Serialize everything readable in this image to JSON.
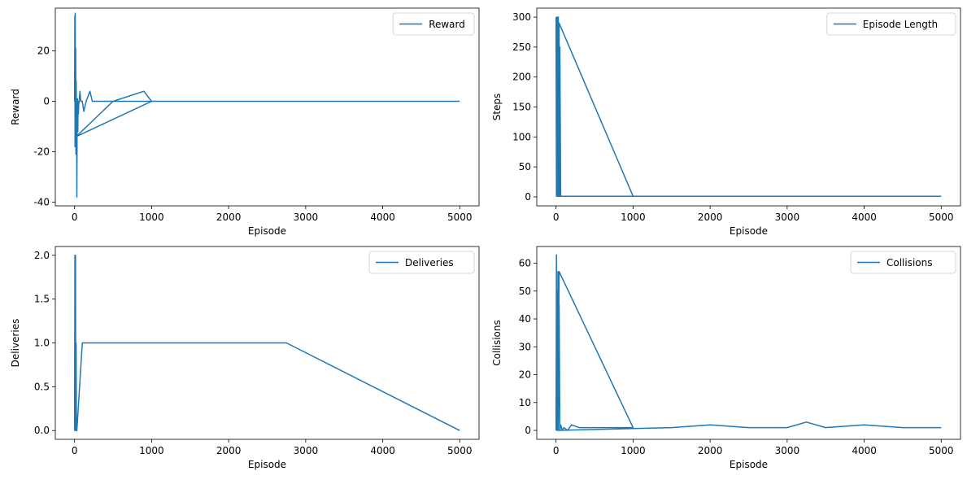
{
  "chart_data": [
    {
      "type": "line",
      "title": "",
      "xlabel": "Episode",
      "ylabel": "Reward",
      "xlim": [
        -250,
        5250
      ],
      "ylim": [
        -41.5,
        37
      ],
      "xticks": [
        0,
        1000,
        2000,
        3000,
        4000,
        5000
      ],
      "yticks": [
        -40,
        -20,
        0,
        20
      ],
      "legend": "upper right",
      "color": "#1f77b4",
      "series": [
        {
          "name": "Reward",
          "x": [
            0,
            3,
            6,
            9,
            12,
            15,
            18,
            21,
            24,
            27,
            30,
            34,
            38,
            42,
            46,
            50,
            55,
            60,
            70,
            80,
            100,
            120,
            150,
            200,
            230,
            1000,
            20,
            500,
            900,
            1000,
            1100,
            1500,
            2000,
            2500,
            3000,
            3500,
            4000,
            4500,
            5000
          ],
          "y": [
            0,
            34,
            -18,
            35,
            -5,
            21,
            -21,
            8,
            -10,
            -2,
            -38,
            -1,
            1,
            -12,
            0,
            -5,
            -1,
            0,
            4,
            0,
            0,
            -4,
            0,
            4,
            0,
            0,
            -14,
            0,
            4,
            0,
            0,
            0,
            0,
            0,
            0,
            0,
            0,
            0,
            0
          ]
        }
      ]
    },
    {
      "type": "line",
      "title": "",
      "xlabel": "Episode",
      "ylabel": "Steps",
      "xlim": [
        -250,
        5250
      ],
      "ylim": [
        -15,
        315
      ],
      "xticks": [
        0,
        1000,
        2000,
        3000,
        4000,
        5000
      ],
      "yticks": [
        0,
        50,
        100,
        150,
        200,
        250,
        300
      ],
      "legend": "upper right",
      "color": "#1f77b4",
      "series": [
        {
          "name": "Episode Length",
          "x": [
            0,
            5,
            10,
            15,
            20,
            25,
            30,
            35,
            40,
            45,
            50,
            60,
            80,
            100,
            150,
            200,
            300,
            1000,
            40,
            30,
            1500,
            2000,
            3000,
            4000,
            5000
          ],
          "y": [
            300,
            1,
            300,
            1,
            300,
            1,
            300,
            1,
            290,
            1,
            250,
            1,
            1,
            1,
            1,
            1,
            1,
            1,
            290,
            1,
            1,
            1,
            1,
            1,
            1
          ]
        }
      ]
    },
    {
      "type": "line",
      "title": "",
      "xlabel": "Episode",
      "ylabel": "Deliveries",
      "xlim": [
        -250,
        5250
      ],
      "ylim": [
        -0.1,
        2.1
      ],
      "xticks": [
        0,
        1000,
        2000,
        3000,
        4000,
        5000
      ],
      "yticks": [
        0.0,
        0.5,
        1.0,
        1.5,
        2.0
      ],
      "legend": "upper right",
      "color": "#1f77b4",
      "series": [
        {
          "name": "Deliveries",
          "x": [
            0,
            4,
            8,
            12,
            16,
            20,
            24,
            30,
            100,
            130,
            230,
            250,
            800,
            1230,
            1840,
            2700,
            2750,
            5000
          ],
          "y": [
            0,
            2,
            0,
            2,
            0,
            1,
            0,
            0,
            1,
            1,
            1,
            1,
            1,
            1,
            1,
            1,
            1,
            0
          ]
        }
      ]
    },
    {
      "type": "line",
      "title": "",
      "xlabel": "Episode",
      "ylabel": "Collisions",
      "xlim": [
        -250,
        5250
      ],
      "ylim": [
        -3.2,
        66
      ],
      "xticks": [
        0,
        1000,
        2000,
        3000,
        4000,
        5000
      ],
      "yticks": [
        0,
        10,
        20,
        30,
        40,
        50,
        60
      ],
      "legend": "upper right",
      "color": "#1f77b4",
      "series": [
        {
          "name": "Collisions",
          "x": [
            0,
            5,
            10,
            15,
            20,
            25,
            30,
            40,
            50,
            60,
            80,
            100,
            150,
            200,
            300,
            1000,
            40,
            30,
            1500,
            2000,
            2500,
            3000,
            3250,
            3500,
            4000,
            4500,
            5000
          ],
          "y": [
            0,
            63,
            0,
            50,
            0,
            57,
            0,
            45,
            0,
            2,
            0,
            1,
            0,
            2,
            1,
            1,
            57,
            0,
            1,
            2,
            1,
            1,
            3,
            1,
            2,
            1,
            1
          ]
        }
      ]
    }
  ]
}
